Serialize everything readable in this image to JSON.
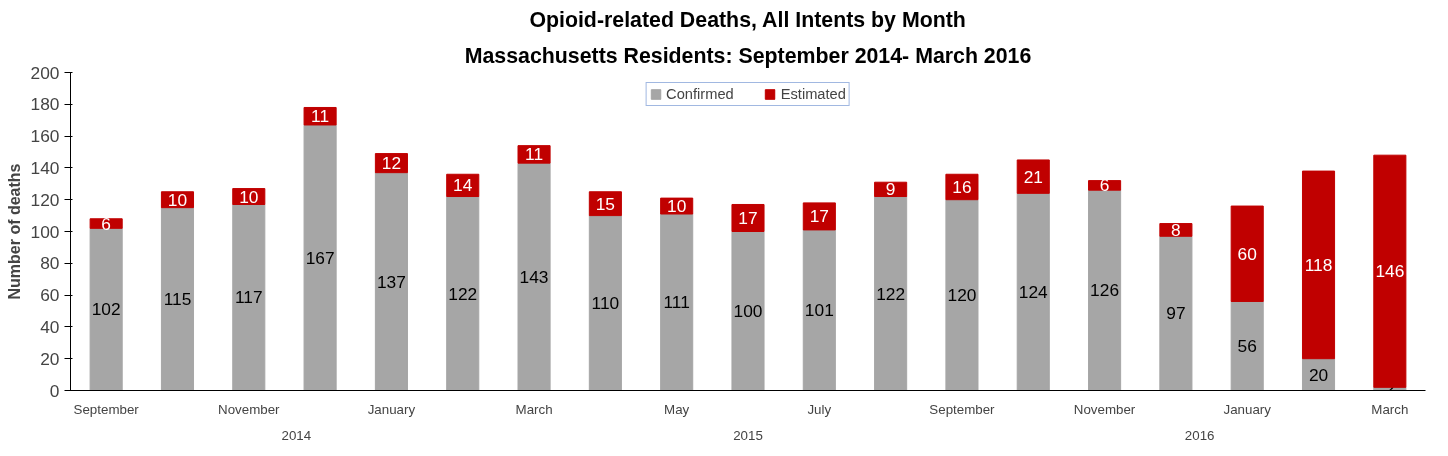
{
  "chart_data": {
    "type": "bar",
    "title": "Opioid-related Deaths, All Intents by Month",
    "subtitle": "Massachusetts Residents: September 2014- March 2016",
    "ylabel": "Number of deaths",
    "categories": [
      "September",
      null,
      "November",
      null,
      "January",
      null,
      "March",
      null,
      "May",
      null,
      "July",
      null,
      "September",
      null,
      "November",
      null,
      "January",
      null,
      "March"
    ],
    "series": [
      {
        "name": "Confirmed",
        "color": "#a6a6a6",
        "values": [
          102,
          115,
          117,
          167,
          137,
          122,
          143,
          110,
          111,
          100,
          101,
          122,
          120,
          124,
          126,
          97,
          56,
          20,
          2
        ]
      },
      {
        "name": "Estimated",
        "color": "#c00000",
        "values": [
          6,
          10,
          10,
          11,
          12,
          14,
          11,
          15,
          10,
          17,
          17,
          9,
          16,
          21,
          6,
          8,
          60,
          118,
          146
        ]
      }
    ],
    "stacked": true,
    "ylim": [
      0,
      200
    ],
    "yticks": [
      0,
      20,
      40,
      60,
      80,
      100,
      120,
      140,
      160,
      180,
      200
    ],
    "grid": false,
    "legend": "top",
    "data_labels": true,
    "annotations": [
      "2014",
      "2015",
      "2016"
    ]
  }
}
